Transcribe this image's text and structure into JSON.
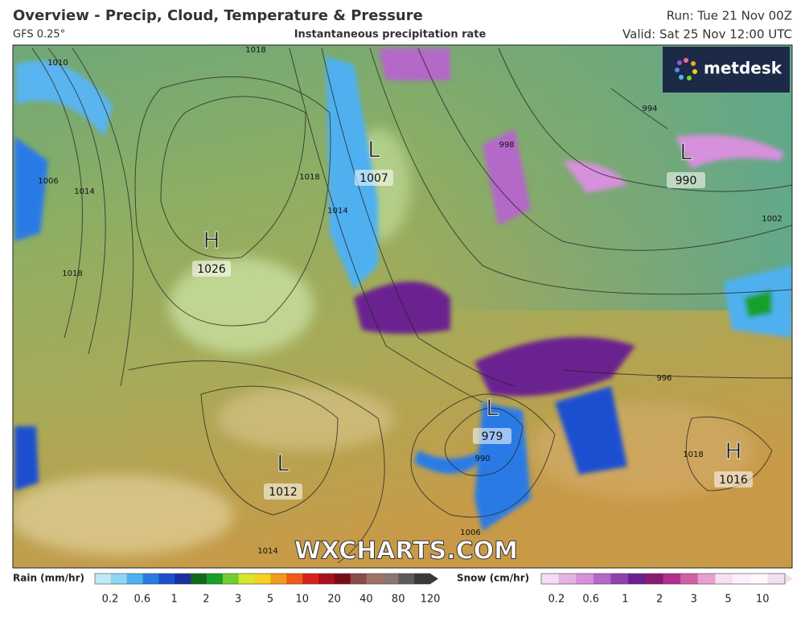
{
  "header": {
    "title": "Overview - Precip, Cloud, Temperature & Pressure",
    "model": "GFS 0.25°",
    "subtitle": "Instantaneous precipitation rate",
    "run": "Run: Tue 21 Nov 00Z",
    "valid": "Valid: Sat 25 Nov 12:00 UTC"
  },
  "logo": "metdesk",
  "watermark": "WXCHARTS.COM",
  "pressure_centers": [
    {
      "letter": "H",
      "value": 1026
    },
    {
      "letter": "L",
      "value": 1007
    },
    {
      "letter": "L",
      "value": 990
    },
    {
      "letter": "L",
      "value": 1012
    },
    {
      "letter": "L",
      "value": 979
    },
    {
      "letter": "H",
      "value": 1016
    }
  ],
  "isobar_labels": [
    1018,
    1010,
    1006,
    1014,
    1018,
    1018,
    1014,
    994,
    1002,
    998,
    996,
    990,
    1006,
    1014,
    1018
  ],
  "legend": {
    "rain": {
      "title": "Rain (mm/hr)",
      "ticks": [
        0.2,
        0.6,
        1,
        2,
        3,
        5,
        10,
        20,
        40,
        80,
        120
      ],
      "colors": [
        "#bfeaf5",
        "#8fd6f3",
        "#4fb0f0",
        "#2a7ae6",
        "#1c4fd0",
        "#1a2fa0",
        "#0f6a1c",
        "#17a02a",
        "#6fcf2f",
        "#d6e82a",
        "#f2d21e",
        "#f29a1c",
        "#ef5a17",
        "#d8201a",
        "#a8101e",
        "#7a0c18",
        "#8c4a48",
        "#a07062",
        "#8a7676",
        "#5e5a5a",
        "#3a3838"
      ]
    },
    "snow": {
      "title": "Snow (cm/hr)",
      "ticks": [
        0.2,
        0.6,
        1,
        2,
        3,
        5,
        10
      ],
      "colors": [
        "#f4dcf2",
        "#e6b2e6",
        "#d690dc",
        "#b468c8",
        "#9040b0",
        "#6a2090",
        "#8a1a72",
        "#b0308c",
        "#d060a8",
        "#e8a0d0",
        "#f8e0f2",
        "#fcf0fa",
        "#fff8fd",
        "#f0e0f0"
      ]
    }
  }
}
